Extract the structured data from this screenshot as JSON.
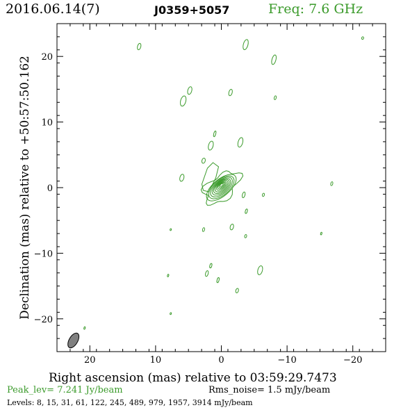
{
  "header": {
    "date": "2016.06.14(7)",
    "source": "J0359+5057",
    "freq": "Freq: 7.6 GHz"
  },
  "footer": {
    "peak": "Peak_lev=  7.241 Jy/beam",
    "rms": "Rms_noise=  1.5 mJy/beam",
    "levels": "Levels:   8,  15,  31,  61, 122, 245, 489, 979, 1957, 3914 mJy/beam"
  },
  "colors": {
    "contour": "#3a9a2a",
    "beam": "#808080",
    "axis": "#000000"
  },
  "chart_data": {
    "type": "contour",
    "xlabel": "Right ascension (mas) relative to 03:59:29.7473",
    "ylabel": "Declination (mas) relative to +50:57:50.162",
    "xlim": [
      25,
      -25
    ],
    "ylim": [
      -25,
      25
    ],
    "xticks": [
      20,
      10,
      0,
      -10,
      -20
    ],
    "xtick_labels": [
      "20",
      "10",
      "0",
      "−10",
      "−20"
    ],
    "yticks": [
      20,
      10,
      0,
      -10,
      -20
    ],
    "ytick_labels": [
      "20",
      "10",
      "0",
      "−10",
      "−20"
    ],
    "peak_jy_per_beam": 7.241,
    "rms_noise_mjy_per_beam": 1.5,
    "levels_mjy_per_beam": [
      8,
      15,
      31,
      61,
      122,
      245,
      489,
      979,
      1957,
      3914
    ],
    "core": {
      "x": 0,
      "y": 0,
      "pa_deg": 35
    },
    "beam": {
      "x": 22.5,
      "y": -23.3,
      "major": 2.5,
      "minor": 1.3,
      "pa_deg": 30
    },
    "noise_blobs": [
      {
        "x": 12.5,
        "y": 21.5,
        "major": 1.0,
        "minor": 0.5
      },
      {
        "x": -3.7,
        "y": 21.8,
        "major": 1.6,
        "minor": 0.7
      },
      {
        "x": -8.0,
        "y": 19.5,
        "major": 1.5,
        "minor": 0.6
      },
      {
        "x": -21.5,
        "y": 22.8,
        "major": 0.4,
        "minor": 0.3
      },
      {
        "x": 4.8,
        "y": 14.8,
        "major": 1.2,
        "minor": 0.6
      },
      {
        "x": 5.8,
        "y": 13.2,
        "major": 1.6,
        "minor": 0.8
      },
      {
        "x": -1.4,
        "y": 14.5,
        "major": 1.0,
        "minor": 0.5
      },
      {
        "x": -8.2,
        "y": 13.7,
        "major": 0.6,
        "minor": 0.3
      },
      {
        "x": 1.0,
        "y": 8.2,
        "major": 0.9,
        "minor": 0.3
      },
      {
        "x": 1.6,
        "y": 6.4,
        "major": 1.4,
        "minor": 0.7
      },
      {
        "x": -2.9,
        "y": 6.9,
        "major": 1.5,
        "minor": 0.7
      },
      {
        "x": 2.7,
        "y": 4.1,
        "major": 0.8,
        "minor": 0.5
      },
      {
        "x": 6.0,
        "y": 1.5,
        "major": 1.1,
        "minor": 0.6
      },
      {
        "x": -3.4,
        "y": -1.1,
        "major": 0.9,
        "minor": 0.4
      },
      {
        "x": -3.8,
        "y": -3.6,
        "major": 0.7,
        "minor": 0.3
      },
      {
        "x": -6.4,
        "y": -1.1,
        "major": 0.5,
        "minor": 0.3
      },
      {
        "x": -16.8,
        "y": 0.6,
        "major": 0.6,
        "minor": 0.3
      },
      {
        "x": 7.7,
        "y": -6.4,
        "major": 0.3,
        "minor": 0.2
      },
      {
        "x": 2.7,
        "y": -6.4,
        "major": 0.6,
        "minor": 0.3
      },
      {
        "x": -1.6,
        "y": -6.0,
        "major": 0.9,
        "minor": 0.5
      },
      {
        "x": -3.7,
        "y": -7.4,
        "major": 0.5,
        "minor": 0.3
      },
      {
        "x": -15.2,
        "y": -7.0,
        "major": 0.4,
        "minor": 0.2
      },
      {
        "x": 1.6,
        "y": -11.9,
        "major": 0.7,
        "minor": 0.3
      },
      {
        "x": 2.2,
        "y": -13.1,
        "major": 0.9,
        "minor": 0.4
      },
      {
        "x": 8.1,
        "y": -13.4,
        "major": 0.4,
        "minor": 0.2
      },
      {
        "x": 0.5,
        "y": -14.1,
        "major": 0.8,
        "minor": 0.3
      },
      {
        "x": -5.9,
        "y": -12.6,
        "major": 1.4,
        "minor": 0.7
      },
      {
        "x": -2.4,
        "y": -15.7,
        "major": 0.7,
        "minor": 0.4
      },
      {
        "x": 7.7,
        "y": -19.2,
        "major": 0.3,
        "minor": 0.2
      },
      {
        "x": 20.8,
        "y": -21.4,
        "major": 0.4,
        "minor": 0.2
      }
    ]
  }
}
